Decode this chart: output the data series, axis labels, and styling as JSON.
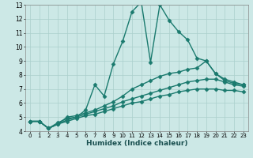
{
  "title": "",
  "xlabel": "Humidex (Indice chaleur)",
  "xlim": [
    -0.5,
    23.5
  ],
  "ylim": [
    4,
    13
  ],
  "yticks": [
    4,
    5,
    6,
    7,
    8,
    9,
    10,
    11,
    12,
    13
  ],
  "xticks": [
    0,
    1,
    2,
    3,
    4,
    5,
    6,
    7,
    8,
    9,
    10,
    11,
    12,
    13,
    14,
    15,
    16,
    17,
    18,
    19,
    20,
    21,
    22,
    23
  ],
  "bg_color": "#cce8e6",
  "grid_color": "#aacfcc",
  "line_color": "#1a7a6e",
  "line_width": 1.0,
  "marker": "D",
  "marker_size": 2.5,
  "lines": [
    [
      4.7,
      4.7,
      4.2,
      4.6,
      4.9,
      5.0,
      5.5,
      7.3,
      6.5,
      8.8,
      10.4,
      12.5,
      13.2,
      8.9,
      13.0,
      11.9,
      11.1,
      10.5,
      9.2,
      9.0,
      8.1,
      7.6,
      7.4,
      7.3
    ],
    [
      4.7,
      4.7,
      4.2,
      4.5,
      5.0,
      5.1,
      5.3,
      5.5,
      5.8,
      6.1,
      6.5,
      7.0,
      7.3,
      7.6,
      7.9,
      8.1,
      8.2,
      8.4,
      8.5,
      9.0,
      8.1,
      7.7,
      7.5,
      7.3
    ],
    [
      4.7,
      4.7,
      4.2,
      4.5,
      4.8,
      5.0,
      5.2,
      5.4,
      5.6,
      5.8,
      6.1,
      6.3,
      6.5,
      6.7,
      6.9,
      7.1,
      7.3,
      7.5,
      7.6,
      7.7,
      7.7,
      7.5,
      7.3,
      7.2
    ],
    [
      4.7,
      4.7,
      4.2,
      4.5,
      4.7,
      4.9,
      5.1,
      5.2,
      5.4,
      5.6,
      5.8,
      6.0,
      6.1,
      6.3,
      6.5,
      6.6,
      6.8,
      6.9,
      7.0,
      7.0,
      7.0,
      6.9,
      6.9,
      6.8
    ]
  ]
}
